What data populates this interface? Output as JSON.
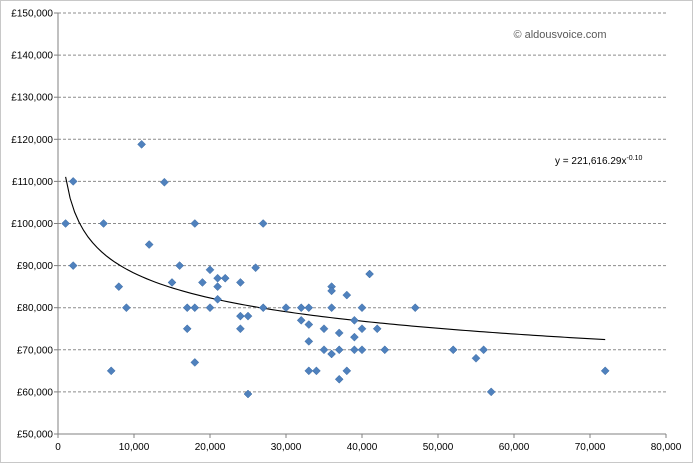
{
  "chart_data": {
    "type": "scatter",
    "title": "",
    "xlabel": "",
    "ylabel": "",
    "xlim": [
      0,
      80000
    ],
    "ylim": [
      50000,
      150000
    ],
    "x_ticks": [
      0,
      10000,
      20000,
      30000,
      40000,
      50000,
      60000,
      70000,
      80000
    ],
    "x_tick_labels": [
      "0",
      "10,000",
      "20,000",
      "30,000",
      "40,000",
      "50,000",
      "60,000",
      "70,000",
      "80,000"
    ],
    "y_ticks": [
      50000,
      60000,
      70000,
      80000,
      90000,
      100000,
      110000,
      120000,
      130000,
      140000,
      150000
    ],
    "y_tick_labels": [
      "£50,000",
      "£60,000",
      "£70,000",
      "£80,000",
      "£90,000",
      "£100,000",
      "£110,000",
      "£120,000",
      "£130,000",
      "£140,000",
      "£150,000"
    ],
    "grid": "horizontal-dashed",
    "marker_color": "#4f81bd",
    "trendline_color": "#000000",
    "watermark": "© aldousvoice.com",
    "trendline": {
      "type": "power",
      "coefficient": 221616.29,
      "exponent": -0.1,
      "x_range": [
        1000,
        72000
      ],
      "equation_base": "y = 221,616.29x",
      "equation_exponent": "-0.10"
    },
    "points": [
      {
        "x": 1000,
        "y": 100000
      },
      {
        "x": 2000,
        "y": 110000
      },
      {
        "x": 2000,
        "y": 90000
      },
      {
        "x": 6000,
        "y": 100000
      },
      {
        "x": 7000,
        "y": 65000
      },
      {
        "x": 8000,
        "y": 85000
      },
      {
        "x": 9000,
        "y": 80000
      },
      {
        "x": 11000,
        "y": 118800
      },
      {
        "x": 12000,
        "y": 95000
      },
      {
        "x": 14000,
        "y": 109800
      },
      {
        "x": 15000,
        "y": 86000
      },
      {
        "x": 16000,
        "y": 90000
      },
      {
        "x": 17000,
        "y": 80000
      },
      {
        "x": 17000,
        "y": 75000
      },
      {
        "x": 18000,
        "y": 100000
      },
      {
        "x": 18000,
        "y": 80000
      },
      {
        "x": 18000,
        "y": 67000
      },
      {
        "x": 19000,
        "y": 86000
      },
      {
        "x": 20000,
        "y": 89000
      },
      {
        "x": 20000,
        "y": 80000
      },
      {
        "x": 21000,
        "y": 87000
      },
      {
        "x": 21000,
        "y": 85000
      },
      {
        "x": 21000,
        "y": 82000
      },
      {
        "x": 22000,
        "y": 87000
      },
      {
        "x": 24000,
        "y": 86000
      },
      {
        "x": 24000,
        "y": 78000
      },
      {
        "x": 24000,
        "y": 75000
      },
      {
        "x": 25000,
        "y": 78000
      },
      {
        "x": 25000,
        "y": 59500
      },
      {
        "x": 26000,
        "y": 89500
      },
      {
        "x": 27000,
        "y": 100000
      },
      {
        "x": 27000,
        "y": 80000
      },
      {
        "x": 30000,
        "y": 80000
      },
      {
        "x": 32000,
        "y": 80000
      },
      {
        "x": 32000,
        "y": 77000
      },
      {
        "x": 33000,
        "y": 80000
      },
      {
        "x": 33000,
        "y": 76000
      },
      {
        "x": 33000,
        "y": 72000
      },
      {
        "x": 33000,
        "y": 65000
      },
      {
        "x": 34000,
        "y": 65000
      },
      {
        "x": 35000,
        "y": 75000
      },
      {
        "x": 35000,
        "y": 70000
      },
      {
        "x": 36000,
        "y": 85000
      },
      {
        "x": 36000,
        "y": 84000
      },
      {
        "x": 36000,
        "y": 80000
      },
      {
        "x": 36000,
        "y": 69000
      },
      {
        "x": 37000,
        "y": 74000
      },
      {
        "x": 37000,
        "y": 70000
      },
      {
        "x": 37000,
        "y": 63000
      },
      {
        "x": 38000,
        "y": 83000
      },
      {
        "x": 38000,
        "y": 65000
      },
      {
        "x": 39000,
        "y": 77000
      },
      {
        "x": 39000,
        "y": 73000
      },
      {
        "x": 39000,
        "y": 70000
      },
      {
        "x": 40000,
        "y": 80000
      },
      {
        "x": 40000,
        "y": 75000
      },
      {
        "x": 40000,
        "y": 70000
      },
      {
        "x": 41000,
        "y": 88000
      },
      {
        "x": 42000,
        "y": 75000
      },
      {
        "x": 43000,
        "y": 70000
      },
      {
        "x": 47000,
        "y": 80000
      },
      {
        "x": 52000,
        "y": 70000
      },
      {
        "x": 55000,
        "y": 68000
      },
      {
        "x": 56000,
        "y": 70000
      },
      {
        "x": 57000,
        "y": 60000
      },
      {
        "x": 72000,
        "y": 65000
      }
    ]
  }
}
